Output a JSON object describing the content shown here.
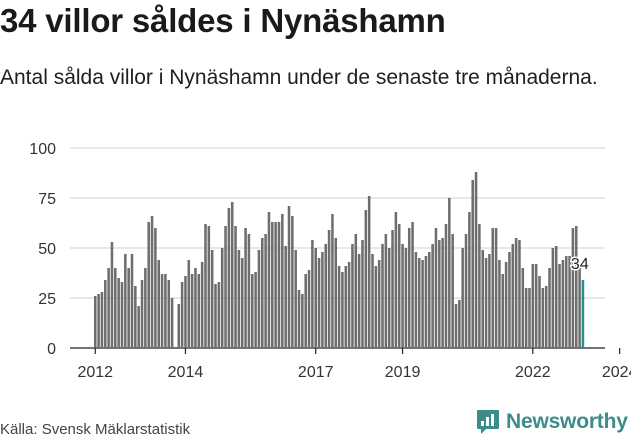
{
  "title": "34 villor såldes i Nynäshamn",
  "subtitle": "Antal sålda villor i Nynäshamn under de senaste tre månaderna.",
  "source": "Källa: Svensk Mäklarstatistik",
  "brand": "Newsworthy",
  "colors": {
    "bar": "#6e6e6e",
    "highlight": "#2a8f8f",
    "grid": "#d0d0d0",
    "brand": "#3d8c8c"
  },
  "chart_data": {
    "type": "bar",
    "title": "34 villor såldes i Nynäshamn",
    "subtitle": "Antal sålda villor i Nynäshamn under de senaste tre månaderna.",
    "xlabel": "",
    "ylabel": "",
    "ylim": [
      0,
      100
    ],
    "yticks": [
      0,
      25,
      50,
      75,
      100
    ],
    "xtick_labels": [
      "2012",
      "2014",
      "2017",
      "2019",
      "2022",
      "2024"
    ],
    "xtick_index": [
      0,
      27,
      66,
      92,
      131,
      157
    ],
    "series": [
      {
        "name": "Sålda villor",
        "start": "2012-01",
        "values": [
          26,
          27,
          28,
          34,
          40,
          53,
          40,
          35,
          33,
          47,
          40,
          47,
          31,
          21,
          34,
          40,
          63,
          66,
          60,
          44,
          37,
          37,
          34,
          25,
          0,
          22,
          33,
          36,
          44,
          37,
          40,
          37,
          43,
          62,
          61,
          49,
          32,
          33,
          50,
          61,
          70,
          73,
          61,
          49,
          45,
          60,
          57,
          37,
          38,
          49,
          55,
          57,
          68,
          63,
          63,
          63,
          67,
          51,
          71,
          66,
          49,
          29,
          27,
          37,
          39,
          54,
          50,
          45,
          48,
          52,
          59,
          67,
          55,
          41,
          38,
          41,
          43,
          52,
          57,
          47,
          54,
          69,
          76,
          47,
          41,
          44,
          52,
          57,
          50,
          59,
          68,
          62,
          52,
          50,
          60,
          63,
          48,
          45,
          44,
          46,
          48,
          52,
          60,
          54,
          55,
          62,
          75,
          57,
          22,
          24,
          50,
          57,
          68,
          84,
          88,
          62,
          49,
          45,
          47,
          60,
          60,
          44,
          37,
          43,
          48,
          52,
          55,
          54,
          40,
          30,
          30,
          42,
          42,
          36,
          30,
          31,
          40,
          50,
          51,
          42,
          44,
          46,
          46,
          60,
          61,
          41,
          34
        ],
        "last_label": "34"
      }
    ]
  }
}
